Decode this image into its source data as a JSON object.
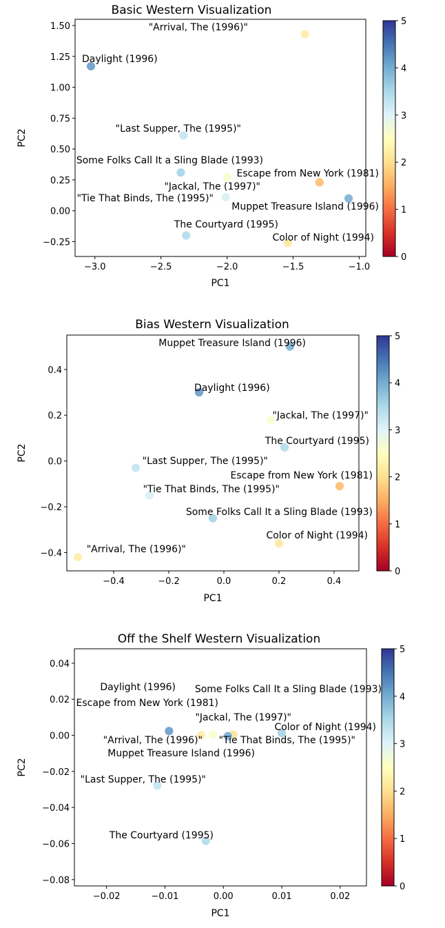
{
  "colorbar": {
    "min": 0,
    "max": 5,
    "ticks": [
      0,
      1,
      2,
      3,
      4,
      5
    ],
    "colormap": "RdYlBu",
    "stops": [
      "#a50026",
      "#d73027",
      "#f46d43",
      "#fdae61",
      "#fee090",
      "#ffffbf",
      "#e0f3f8",
      "#abd9e9",
      "#74add1",
      "#4575b4",
      "#313695"
    ]
  },
  "chart_data": [
    {
      "type": "scatter",
      "title": "Basic Western Visualization",
      "xlabel": "PC1",
      "ylabel": "PC2",
      "xlim": [
        -3.15,
        -0.95
      ],
      "ylim": [
        -0.37,
        1.55
      ],
      "xticks": [
        -3.0,
        -2.5,
        -2.0,
        -1.5,
        -1.0
      ],
      "xtick_labels": [
        "−3.0",
        "−2.5",
        "−2.0",
        "−1.5",
        "−1.0"
      ],
      "yticks": [
        -0.25,
        0.0,
        0.25,
        0.5,
        0.75,
        1.0,
        1.25,
        1.5
      ],
      "ytick_labels": [
        "−0.25",
        "0.00",
        "0.25",
        "0.50",
        "0.75",
        "1.00",
        "1.25",
        "1.50"
      ],
      "points": [
        {
          "label": "\"Arrival, The (1996)\"",
          "x": -1.41,
          "y": 1.43,
          "value": 2.2
        },
        {
          "label": "Daylight (1996)",
          "x": -3.03,
          "y": 1.17,
          "value": 4.2
        },
        {
          "label": "\"Last Supper, The (1995)\"",
          "x": -2.33,
          "y": 0.61,
          "value": 3.3
        },
        {
          "label": "Some Folks Call It a Sling Blade (1993)",
          "x": -2.35,
          "y": 0.31,
          "value": 3.6
        },
        {
          "label": "Escape from New York (1981)",
          "x": -1.3,
          "y": 0.23,
          "value": 1.6
        },
        {
          "label": "\"Jackal, The (1997)\"",
          "x": -2.0,
          "y": 0.27,
          "value": 2.6
        },
        {
          "label": "\"Tie That Binds, The (1995)\"",
          "x": -2.01,
          "y": 0.11,
          "value": 3.1
        },
        {
          "label": "Muppet Treasure Island (1996)",
          "x": -1.08,
          "y": 0.1,
          "value": 4.0
        },
        {
          "label": "The Courtyard (1995)",
          "x": -2.31,
          "y": -0.2,
          "value": 3.5
        },
        {
          "label": "Color of Night (1994)",
          "x": -1.54,
          "y": -0.26,
          "value": 2.1
        }
      ]
    },
    {
      "type": "scatter",
      "title": "Bias Western Visualization",
      "xlabel": "PC1",
      "ylabel": "PC2",
      "xlim": [
        -0.57,
        0.49
      ],
      "ylim": [
        -0.48,
        0.55
      ],
      "xticks": [
        -0.4,
        -0.2,
        0.0,
        0.2,
        0.4
      ],
      "xtick_labels": [
        "−0.4",
        "−0.2",
        "0.0",
        "0.2",
        "0.4"
      ],
      "yticks": [
        -0.4,
        -0.2,
        0.0,
        0.2,
        0.4
      ],
      "ytick_labels": [
        "−0.4",
        "−0.2",
        "0.0",
        "0.2",
        "0.4"
      ],
      "points": [
        {
          "label": "Muppet Treasure Island (1996)",
          "x": 0.24,
          "y": 0.5,
          "value": 4.0
        },
        {
          "label": "Daylight (1996)",
          "x": -0.09,
          "y": 0.3,
          "value": 4.2
        },
        {
          "label": "\"Jackal, The (1997)\"",
          "x": 0.17,
          "y": 0.18,
          "value": 2.6
        },
        {
          "label": "The Courtyard (1995)",
          "x": 0.22,
          "y": 0.06,
          "value": 3.5
        },
        {
          "label": "\"Last Supper, The (1995)\"",
          "x": -0.32,
          "y": -0.03,
          "value": 3.3
        },
        {
          "label": "Escape from New York (1981)",
          "x": 0.42,
          "y": -0.11,
          "value": 1.6
        },
        {
          "label": "\"Tie That Binds, The (1995)\"",
          "x": -0.27,
          "y": -0.15,
          "value": 3.1
        },
        {
          "label": "Some Folks Call It a Sling Blade (1993)",
          "x": -0.04,
          "y": -0.25,
          "value": 3.6
        },
        {
          "label": "Color of Night (1994)",
          "x": 0.2,
          "y": -0.36,
          "value": 2.1
        },
        {
          "label": "\"Arrival, The (1996)\"",
          "x": -0.53,
          "y": -0.42,
          "value": 2.2
        }
      ]
    },
    {
      "type": "scatter",
      "title": "Off the Shelf Western Visualization",
      "xlabel": "PC1",
      "ylabel": "PC2",
      "xlim": [
        -0.0255,
        0.0245
      ],
      "ylim": [
        -0.0835,
        0.048
      ],
      "xticks": [
        -0.02,
        -0.01,
        0.0,
        0.01,
        0.02
      ],
      "xtick_labels": [
        "−0.02",
        "−0.01",
        "0.00",
        "0.01",
        "0.02"
      ],
      "yticks": [
        -0.08,
        -0.06,
        -0.04,
        -0.02,
        0.0,
        0.02,
        0.04
      ],
      "ytick_labels": [
        "−0.08",
        "−0.06",
        "−0.04",
        "−0.02",
        "0.00",
        "0.02",
        "0.04"
      ],
      "points": [
        {
          "label": "Daylight (1996)",
          "x": -0.0093,
          "y": 0.0024,
          "value": 4.2
        },
        {
          "label": "Some Folks Call It a Sling Blade (1993)",
          "x": 0.01,
          "y": 0.0012,
          "value": 3.6
        },
        {
          "label": "Escape from New York (1981)",
          "x": 0.0017,
          "y": 0.0005,
          "value": 1.6
        },
        {
          "label": "\"Jackal, The (1997)\"",
          "x": -0.0018,
          "y": 0.0004,
          "value": 2.6
        },
        {
          "label": "Color of Night (1994)",
          "x": 0.0015,
          "y": 0.0003,
          "value": 2.1
        },
        {
          "label": "\"Arrival, The (1996)\"",
          "x": -0.0038,
          "y": 0.0001,
          "value": 2.2
        },
        {
          "label": "\"Tie That Binds, The (1995)\"",
          "x": 0.0006,
          "y": -0.0003,
          "value": 3.1
        },
        {
          "label": "Muppet Treasure Island (1996)",
          "x": 0.0008,
          "y": -0.0004,
          "value": 4.0
        },
        {
          "label": "\"Last Supper, The (1995)\"",
          "x": -0.0113,
          "y": -0.0278,
          "value": 3.3
        },
        {
          "label": "The Courtyard (1995)",
          "x": -0.003,
          "y": -0.0585,
          "value": 3.5
        }
      ]
    }
  ]
}
